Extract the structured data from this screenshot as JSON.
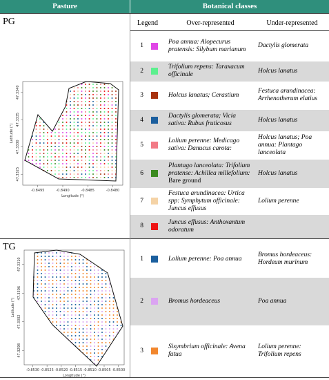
{
  "header": {
    "pasture": "Pasture",
    "classes": "Botanical classes"
  },
  "columns": [
    "Legend",
    "Over-represented",
    "Under-represented"
  ],
  "sections": [
    {
      "label": "PG",
      "map": {
        "xlabel": "Longitude (°)",
        "ylabel": "Latitude (°)",
        "xlim": [
          -0.8498,
          -0.8478
        ],
        "ylim": [
          47.3323,
          47.3342
        ],
        "xticks": [
          {
            "value": -0.8495,
            "label": "-0.8495"
          },
          {
            "value": -0.849,
            "label": "-0.8490"
          },
          {
            "value": -0.8485,
            "label": "-0.8485"
          },
          {
            "value": -0.848,
            "label": "-0.8480"
          }
        ],
        "yticks": [
          {
            "value": 47.3325,
            "label": "47.3325"
          },
          {
            "value": 47.333,
            "label": "47.3330"
          },
          {
            "value": 47.3335,
            "label": "47.3335"
          },
          {
            "value": 47.334,
            "label": "47.3340"
          }
        ]
      },
      "rows": [
        {
          "legend": "1",
          "color": "#e046e6",
          "over": "Poa annua: Alopecurus pratensis: Silybum marianum",
          "under": "Dactylis glomerata"
        },
        {
          "legend": "2",
          "color": "#5cf08e",
          "over": "Trifolium repens: Taraxacum officinale",
          "under": "Holcus lanatus"
        },
        {
          "legend": "3",
          "color": "#a8320f",
          "over": "Holcus lanatus; Cerastium",
          "under": "Festuca arundinacea: Arrhenatherum elatius"
        },
        {
          "legend": "4",
          "color": "#1b5f9e",
          "over": "Dactylis glomerata; Vicia sativa: Rubus fruticosus",
          "under": "Holcus lanatus"
        },
        {
          "legend": "5",
          "color": "#f27a86",
          "over": "Lolium perenne: Medicago sativa: Danucus carota:",
          "under": "Holcus lanatus; Poa annua: Plantago lanceolata"
        },
        {
          "legend": "6",
          "color": "#3b8a1f",
          "over": "Plantago lanceolata: Trifolium pratense: Achillea millefolium:",
          "over_note": "Bare ground",
          "under": "Holcus lanatus"
        },
        {
          "legend": "7",
          "color": "#f5d3a6",
          "over": "Festuca arundinacea: Urtica spp: Symphytum officinale: Juncus effusus",
          "under": "Lolium perenne"
        },
        {
          "legend": "8",
          "color": "#ee1414",
          "over": "Juncus effusus: Anthoxantum odoratum"
        }
      ]
    },
    {
      "label": "TG",
      "map": {
        "xlabel": "Longitude (°)",
        "ylabel": "Latitude (°)",
        "xlim": [
          -0.8533,
          -0.8498
        ],
        "ylim": [
          47.3296,
          47.3312
        ],
        "xticks": [
          {
            "value": -0.853,
            "label": "-0.8530"
          },
          {
            "value": -0.8525,
            "label": "-0.8525"
          },
          {
            "value": -0.852,
            "label": "-0.8520"
          },
          {
            "value": -0.8515,
            "label": "-0.8515"
          },
          {
            "value": -0.851,
            "label": "-0.8510"
          },
          {
            "value": -0.8505,
            "label": "-0.8505"
          },
          {
            "value": -0.85,
            "label": "-0.8500"
          }
        ],
        "yticks": [
          {
            "value": 47.3298,
            "label": "47.3298"
          },
          {
            "value": 47.3302,
            "label": "47.3302"
          },
          {
            "value": 47.3306,
            "label": "47.3306"
          },
          {
            "value": 47.331,
            "label": "47.3310"
          }
        ]
      },
      "rows": [
        {
          "legend": "1",
          "color": "#1b5f9e",
          "over": "Lolium perenne: Poa annua",
          "under": "Bromus hordeaceus: Hordeum murinum"
        },
        {
          "legend": "2",
          "color": "#dba4f2",
          "over": "Bromus hordeaceus",
          "under": "Poa annua"
        },
        {
          "legend": "3",
          "color": "#f2872e",
          "over": "Sisymbrium officinale: Avena fatua",
          "under": "Lolium perenne: Trifolium repens"
        }
      ]
    }
  ]
}
